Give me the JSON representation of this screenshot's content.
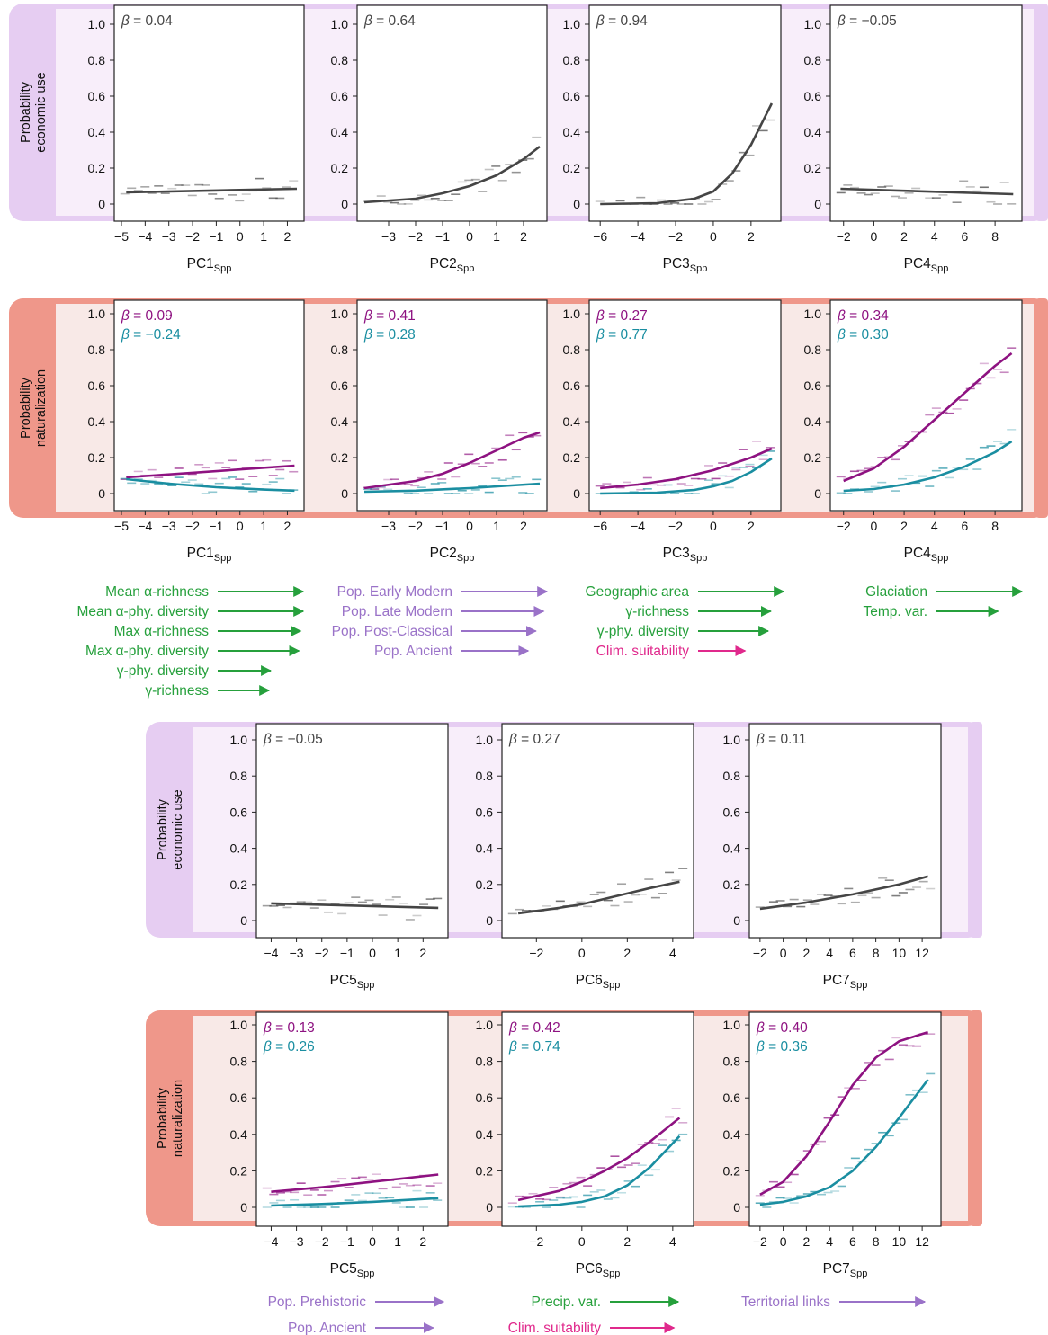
{
  "figure": {
    "ylabel_economic": [
      "Probability",
      "economic use"
    ],
    "ylabel_naturalization": [
      "Probability",
      "naturalization"
    ],
    "y_tick_labels": [
      "0",
      "0.2",
      "0.4",
      "0.6",
      "0.8",
      "1.0"
    ],
    "beta_symbol": "β",
    "axis_subscript": "Spp"
  },
  "colors": {
    "curve_economic": "#454545",
    "curve_nat_purple": "#8e1281",
    "curve_nat_teal": "#1a8ea1",
    "band_economic": "#e6cdf2",
    "band_economic_light": "#f8eefa",
    "band_naturalization": "#ef978a",
    "band_naturalization_light": "#f8e9e7",
    "arrow_green": "#26a03c",
    "arrow_purple": "#9a72c8",
    "arrow_pink": "#e0298c"
  },
  "chart_data": [
    {
      "id": "econ-pc1",
      "type": "line",
      "xlabel": "PC1",
      "ylim": [
        0,
        1
      ],
      "xlim": [
        -5,
        2.4
      ],
      "xticks": [
        -5,
        -4,
        -3,
        -2,
        -1,
        0,
        1,
        2
      ],
      "series": [
        {
          "beta": "β = 0.04",
          "color": "econ",
          "points": [
            [
              -4.8,
              0.065
            ],
            [
              2.4,
              0.085
            ]
          ]
        }
      ]
    },
    {
      "id": "econ-pc2",
      "type": "line",
      "xlabel": "PC2",
      "ylim": [
        0,
        1
      ],
      "xlim": [
        -3.9,
        2.6
      ],
      "xticks": [
        -3,
        -2,
        -1,
        0,
        1,
        2
      ],
      "series": [
        {
          "beta": "β = 0.64",
          "color": "econ",
          "points": [
            [
              -3.9,
              0.01
            ],
            [
              -2,
              0.03
            ],
            [
              -1,
              0.06
            ],
            [
              0,
              0.1
            ],
            [
              1,
              0.16
            ],
            [
              2,
              0.25
            ],
            [
              2.6,
              0.32
            ]
          ]
        }
      ]
    },
    {
      "id": "econ-pc3",
      "type": "line",
      "xlabel": "PC3",
      "ylim": [
        0,
        1
      ],
      "xlim": [
        -6.2,
        3.2
      ],
      "xticks": [
        -6,
        -4,
        -2,
        0,
        2
      ],
      "series": [
        {
          "beta": "β = 0.94",
          "color": "econ",
          "points": [
            [
              -6,
              0.0
            ],
            [
              -3,
              0.005
            ],
            [
              -1,
              0.03
            ],
            [
              0,
              0.07
            ],
            [
              1,
              0.17
            ],
            [
              2,
              0.33
            ],
            [
              3.1,
              0.56
            ]
          ]
        }
      ]
    },
    {
      "id": "econ-pc4",
      "type": "line",
      "xlabel": "PC4",
      "ylim": [
        0,
        1
      ],
      "xlim": [
        -2.4,
        9.3
      ],
      "xticks": [
        -2,
        0,
        2,
        4,
        6,
        8
      ],
      "series": [
        {
          "beta": "β = −0.05",
          "color": "econ",
          "points": [
            [
              -2.2,
              0.085
            ],
            [
              9.2,
              0.055
            ]
          ]
        }
      ]
    },
    {
      "id": "nat-pc1",
      "type": "line",
      "xlabel": "PC1",
      "ylim": [
        0,
        1
      ],
      "xlim": [
        -5,
        2.4
      ],
      "xticks": [
        -5,
        -4,
        -3,
        -2,
        -1,
        0,
        1,
        2
      ],
      "series": [
        {
          "beta": "β = 0.09",
          "color": "purple",
          "points": [
            [
              -4.8,
              0.09
            ],
            [
              2.3,
              0.155
            ]
          ]
        },
        {
          "beta": "β = −0.24",
          "color": "teal",
          "points": [
            [
              -4.8,
              0.08
            ],
            [
              -3,
              0.055
            ],
            [
              -1,
              0.035
            ],
            [
              1,
              0.022
            ],
            [
              2.3,
              0.016
            ]
          ]
        }
      ]
    },
    {
      "id": "nat-pc2",
      "type": "line",
      "xlabel": "PC2",
      "ylim": [
        0,
        1
      ],
      "xlim": [
        -3.9,
        2.6
      ],
      "xticks": [
        -3,
        -2,
        -1,
        0,
        1,
        2
      ],
      "series": [
        {
          "beta": "β = 0.41",
          "color": "purple",
          "points": [
            [
              -3.9,
              0.03
            ],
            [
              -2,
              0.07
            ],
            [
              -1,
              0.11
            ],
            [
              0,
              0.17
            ],
            [
              1,
              0.24
            ],
            [
              2,
              0.31
            ],
            [
              2.6,
              0.34
            ]
          ]
        },
        {
          "beta": "β = 0.28",
          "color": "teal",
          "points": [
            [
              -3.9,
              0.01
            ],
            [
              -2,
              0.016
            ],
            [
              0,
              0.03
            ],
            [
              2.6,
              0.055
            ]
          ]
        }
      ]
    },
    {
      "id": "nat-pc3",
      "type": "line",
      "xlabel": "PC3",
      "ylim": [
        0,
        1
      ],
      "xlim": [
        -6.2,
        3.2
      ],
      "xticks": [
        -6,
        -4,
        -2,
        0,
        2
      ],
      "series": [
        {
          "beta": "β = 0.27",
          "color": "purple",
          "points": [
            [
              -6,
              0.03
            ],
            [
              -4,
              0.05
            ],
            [
              -2,
              0.08
            ],
            [
              0,
              0.13
            ],
            [
              2,
              0.2
            ],
            [
              3.1,
              0.25
            ]
          ]
        },
        {
          "beta": "β = 0.77",
          "color": "teal",
          "points": [
            [
              -6,
              0.0
            ],
            [
              -3,
              0.005
            ],
            [
              -1,
              0.02
            ],
            [
              0,
              0.04
            ],
            [
              1,
              0.07
            ],
            [
              2,
              0.12
            ],
            [
              3.1,
              0.195
            ]
          ]
        }
      ]
    },
    {
      "id": "nat-pc4",
      "type": "line",
      "xlabel": "PC4",
      "ylim": [
        0,
        1
      ],
      "xlim": [
        -2.4,
        9.3
      ],
      "xticks": [
        -2,
        0,
        2,
        4,
        6,
        8
      ],
      "series": [
        {
          "beta": "β = 0.34",
          "color": "purple",
          "points": [
            [
              -2,
              0.07
            ],
            [
              0,
              0.14
            ],
            [
              2,
              0.26
            ],
            [
              4,
              0.41
            ],
            [
              6,
              0.56
            ],
            [
              8,
              0.71
            ],
            [
              9.1,
              0.78
            ]
          ]
        },
        {
          "beta": "β = 0.30",
          "color": "teal",
          "points": [
            [
              -2,
              0.015
            ],
            [
              0,
              0.025
            ],
            [
              2,
              0.05
            ],
            [
              4,
              0.09
            ],
            [
              6,
              0.15
            ],
            [
              8,
              0.23
            ],
            [
              9.1,
              0.29
            ]
          ]
        }
      ]
    },
    {
      "id": "econ-pc5",
      "type": "line",
      "xlabel": "PC5",
      "ylim": [
        0,
        1
      ],
      "xlim": [
        -4.3,
        2.7
      ],
      "xticks": [
        -4,
        -3,
        -2,
        -1,
        0,
        1,
        2
      ],
      "series": [
        {
          "beta": "β = −0.05",
          "color": "econ",
          "points": [
            [
              -4,
              0.095
            ],
            [
              2.6,
              0.07
            ]
          ]
        }
      ]
    },
    {
      "id": "econ-pc6",
      "type": "line",
      "xlabel": "PC6",
      "ylim": [
        0,
        1
      ],
      "xlim": [
        -3.2,
        4.6
      ],
      "xticks": [
        -2,
        0,
        2,
        4
      ],
      "series": [
        {
          "beta": "β = 0.27",
          "color": "econ",
          "points": [
            [
              -2.8,
              0.04
            ],
            [
              -1,
              0.07
            ],
            [
              0,
              0.09
            ],
            [
              1,
              0.12
            ],
            [
              2,
              0.15
            ],
            [
              3,
              0.18
            ],
            [
              4.3,
              0.215
            ]
          ]
        }
      ]
    },
    {
      "id": "econ-pc7",
      "type": "line",
      "xlabel": "PC7",
      "ylim": [
        0,
        1
      ],
      "xlim": [
        -2.3,
        13
      ],
      "xticks": [
        -2,
        0,
        2,
        4,
        6,
        8,
        10,
        12
      ],
      "series": [
        {
          "beta": "β = 0.11",
          "color": "econ",
          "points": [
            [
              -2,
              0.065
            ],
            [
              2,
              0.1
            ],
            [
              6,
              0.145
            ],
            [
              10,
              0.2
            ],
            [
              12.5,
              0.245
            ]
          ]
        }
      ]
    },
    {
      "id": "nat-pc5",
      "type": "line",
      "xlabel": "PC5",
      "ylim": [
        0,
        1
      ],
      "xlim": [
        -4.3,
        2.7
      ],
      "xticks": [
        -4,
        -3,
        -2,
        -1,
        0,
        1,
        2
      ],
      "series": [
        {
          "beta": "β = 0.13",
          "color": "purple",
          "points": [
            [
              -4,
              0.085
            ],
            [
              -2,
              0.11
            ],
            [
              0,
              0.14
            ],
            [
              2.6,
              0.18
            ]
          ]
        },
        {
          "beta": "β = 0.26",
          "color": "teal",
          "points": [
            [
              -4,
              0.01
            ],
            [
              -2,
              0.018
            ],
            [
              0,
              0.03
            ],
            [
              2.6,
              0.05
            ]
          ]
        }
      ]
    },
    {
      "id": "nat-pc6",
      "type": "line",
      "xlabel": "PC6",
      "ylim": [
        0,
        1
      ],
      "xlim": [
        -3.2,
        4.6
      ],
      "xticks": [
        -2,
        0,
        2,
        4
      ],
      "series": [
        {
          "beta": "β = 0.42",
          "color": "purple",
          "points": [
            [
              -2.8,
              0.04
            ],
            [
              -1,
              0.09
            ],
            [
              0,
              0.14
            ],
            [
              1,
              0.2
            ],
            [
              2,
              0.27
            ],
            [
              3,
              0.36
            ],
            [
              4.3,
              0.49
            ]
          ]
        },
        {
          "beta": "β = 0.74",
          "color": "teal",
          "points": [
            [
              -2.8,
              0.005
            ],
            [
              -1,
              0.015
            ],
            [
              0,
              0.03
            ],
            [
              1,
              0.06
            ],
            [
              2,
              0.12
            ],
            [
              3,
              0.22
            ],
            [
              4.3,
              0.39
            ]
          ]
        }
      ]
    },
    {
      "id": "nat-pc7",
      "type": "line",
      "xlabel": "PC7",
      "ylim": [
        0,
        1
      ],
      "xlim": [
        -2.3,
        13
      ],
      "xticks": [
        -2,
        0,
        2,
        4,
        6,
        8,
        10,
        12
      ],
      "series": [
        {
          "beta": "β = 0.40",
          "color": "purple",
          "points": [
            [
              -2,
              0.07
            ],
            [
              0,
              0.14
            ],
            [
              2,
              0.28
            ],
            [
              4,
              0.47
            ],
            [
              6,
              0.67
            ],
            [
              8,
              0.82
            ],
            [
              10,
              0.91
            ],
            [
              12.5,
              0.96
            ]
          ]
        },
        {
          "beta": "β = 0.36",
          "color": "teal",
          "points": [
            [
              -2,
              0.015
            ],
            [
              0,
              0.03
            ],
            [
              2,
              0.06
            ],
            [
              4,
              0.11
            ],
            [
              6,
              0.2
            ],
            [
              8,
              0.33
            ],
            [
              10,
              0.49
            ],
            [
              12.5,
              0.7
            ]
          ]
        }
      ]
    }
  ],
  "drivers": [
    {
      "col": "pc1",
      "items": [
        {
          "label": "Mean α-richness",
          "color": "green",
          "strength": 1.0
        },
        {
          "label": "Mean α-phy. diversity",
          "color": "green",
          "strength": 1.0
        },
        {
          "label": "Max α-richness",
          "color": "green",
          "strength": 0.97
        },
        {
          "label": "Max α-phy. diversity",
          "color": "green",
          "strength": 0.95
        },
        {
          "label": "γ-phy. diversity",
          "color": "green",
          "strength": 0.62
        },
        {
          "label": "γ-richness",
          "color": "green",
          "strength": 0.6
        }
      ]
    },
    {
      "col": "pc2",
      "items": [
        {
          "label": "Pop. Early Modern",
          "color": "purple",
          "strength": 1.0
        },
        {
          "label": "Pop. Late Modern",
          "color": "purple",
          "strength": 0.96
        },
        {
          "label": "Pop. Post-Classical",
          "color": "purple",
          "strength": 0.87
        },
        {
          "label": "Pop. Ancient",
          "color": "purple",
          "strength": 0.78
        }
      ]
    },
    {
      "col": "pc3",
      "items": [
        {
          "label": "Geographic area",
          "color": "green",
          "strength": 1.0
        },
        {
          "label": "γ-richness",
          "color": "green",
          "strength": 0.85
        },
        {
          "label": "γ-phy. diversity",
          "color": "green",
          "strength": 0.82
        },
        {
          "label": "Clim. suitability",
          "color": "pink",
          "strength": 0.55
        }
      ]
    },
    {
      "col": "pc4",
      "items": [
        {
          "label": "Glaciation",
          "color": "green",
          "strength": 1.0
        },
        {
          "label": "Temp. var.",
          "color": "green",
          "strength": 0.72
        }
      ]
    },
    {
      "col": "pc5",
      "items": [
        {
          "label": "Pop. Prehistoric",
          "color": "purple",
          "strength": 0.8
        },
        {
          "label": "Pop. Ancient",
          "color": "purple",
          "strength": 0.68
        }
      ]
    },
    {
      "col": "pc6",
      "items": [
        {
          "label": "Precip. var.",
          "color": "green",
          "strength": 0.8
        },
        {
          "label": "Clim. suitability",
          "color": "pink",
          "strength": 0.75
        }
      ]
    },
    {
      "col": "pc7",
      "items": [
        {
          "label": "Territorial links",
          "color": "purple",
          "strength": 1.0
        }
      ]
    }
  ]
}
